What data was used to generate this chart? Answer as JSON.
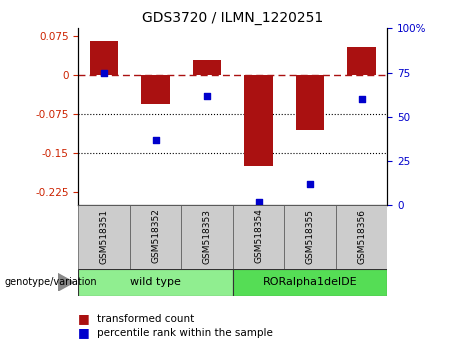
{
  "title": "GDS3720 / ILMN_1220251",
  "categories": [
    "GSM518351",
    "GSM518352",
    "GSM518353",
    "GSM518354",
    "GSM518355",
    "GSM518356"
  ],
  "bar_values": [
    0.065,
    -0.055,
    0.03,
    -0.175,
    -0.105,
    0.055
  ],
  "dot_values_pct": [
    75,
    37,
    62,
    2,
    12,
    60
  ],
  "bar_color": "#aa1111",
  "dot_color": "#0000cc",
  "ylim_left": [
    -0.25,
    0.09
  ],
  "ylim_right": [
    0,
    100
  ],
  "yticks_left": [
    0.075,
    0,
    -0.075,
    -0.15,
    -0.225
  ],
  "yticks_right": [
    100,
    75,
    50,
    25,
    0
  ],
  "dotted_lines": [
    -0.075,
    -0.15
  ],
  "group_labels": [
    "wild type",
    "RORalpha1delDE"
  ],
  "group_ranges": [
    [
      0,
      3
    ],
    [
      3,
      6
    ]
  ],
  "group_colors": [
    "#90ee90",
    "#55dd55"
  ],
  "genotype_label": "genotype/variation",
  "legend_items": [
    "transformed count",
    "percentile rank within the sample"
  ],
  "bar_width": 0.55,
  "background_color": "#ffffff",
  "tick_label_color_left": "#cc2200",
  "tick_label_color_right": "#0000cc"
}
